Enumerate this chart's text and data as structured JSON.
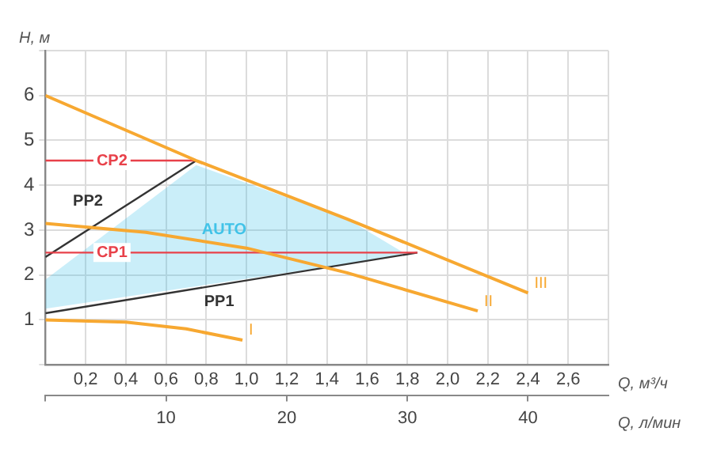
{
  "chart_data": {
    "type": "line",
    "xlabel": "Q, м³/ч",
    "x2label": "Q, л/мин",
    "ylabel": "H, м",
    "xlim": [
      0,
      2.8
    ],
    "xticks": [
      {
        "value": 0,
        "label": null
      },
      {
        "value": 0.2,
        "label": "0,2"
      },
      {
        "value": 0.4,
        "label": "0,4"
      },
      {
        "value": 0.6,
        "label": "0,6"
      },
      {
        "value": 0.8,
        "label": "0,8"
      },
      {
        "value": 1.0,
        "label": "1,0"
      },
      {
        "value": 1.2,
        "label": "1,2"
      },
      {
        "value": 1.4,
        "label": "1,4"
      },
      {
        "value": 1.6,
        "label": "1,6"
      },
      {
        "value": 1.8,
        "label": "1,8"
      },
      {
        "value": 2.0,
        "label": "2,0"
      },
      {
        "value": 2.2,
        "label": "2,2"
      },
      {
        "value": 2.4,
        "label": "2,4"
      },
      {
        "value": 2.6,
        "label": "2,6"
      },
      {
        "value": 2.8,
        "label": null
      }
    ],
    "x2lim": [
      0,
      46.67
    ],
    "x2ticks": [
      {
        "value": 0,
        "label": null
      },
      10,
      20,
      30,
      40
    ],
    "ylim": [
      0,
      7
    ],
    "yticks": [
      {
        "value": 0,
        "label": null
      },
      1,
      2,
      3,
      4,
      5,
      6,
      {
        "value": 7,
        "label": null
      }
    ],
    "grid": true,
    "legend": false,
    "marker": "none",
    "series": [
      {
        "name": "AUTO",
        "type": "area",
        "color": "#41c3e8",
        "x": [
          0,
          1.8,
          1.5,
          0.75,
          0
        ],
        "values": [
          1.25,
          2.45,
          3.25,
          4.45,
          1.9
        ]
      },
      {
        "name": "I",
        "color": "#f7a831",
        "x": [
          0,
          0.4,
          0.7,
          0.98
        ],
        "values": [
          1.0,
          0.95,
          0.8,
          0.55
        ]
      },
      {
        "name": "II",
        "color": "#f7a831",
        "x": [
          0,
          0.5,
          1.0,
          1.5,
          2.15
        ],
        "values": [
          3.15,
          2.95,
          2.6,
          2.05,
          1.2
        ]
      },
      {
        "name": "III",
        "color": "#f7a831",
        "x": [
          0,
          0.75,
          1.5,
          2.4
        ],
        "values": [
          6.0,
          4.55,
          3.25,
          1.6
        ]
      },
      {
        "name": "CP2",
        "color": "#e8414a",
        "x": [
          0,
          0.75
        ],
        "values": [
          4.55,
          4.55
        ]
      },
      {
        "name": "CP1",
        "color": "#e8414a",
        "x": [
          0,
          1.85
        ],
        "values": [
          2.5,
          2.5
        ]
      },
      {
        "name": "PP2",
        "color": "#333333",
        "x": [
          0,
          0.75
        ],
        "values": [
          2.4,
          4.55
        ]
      },
      {
        "name": "PP1",
        "color": "#333333",
        "x": [
          0,
          1.85
        ],
        "values": [
          1.15,
          2.5
        ]
      }
    ]
  }
}
